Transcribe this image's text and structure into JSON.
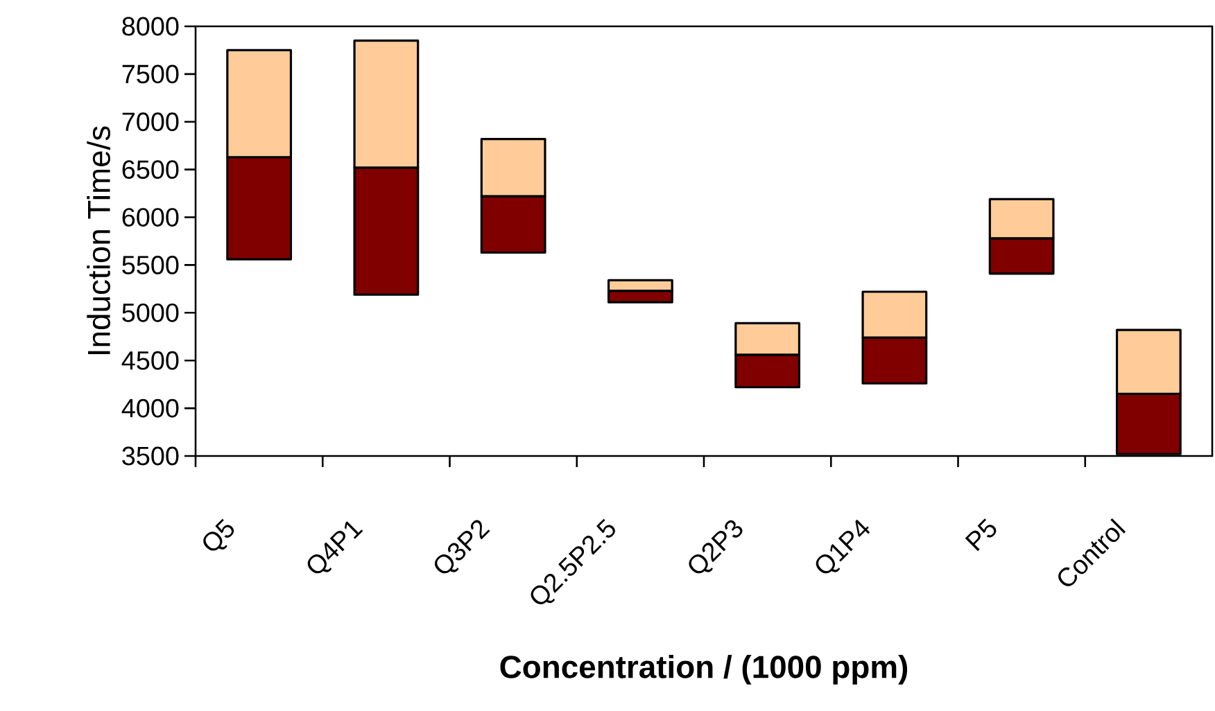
{
  "chart_data": {
    "type": "bar",
    "xlabel": "Concentration / (1000 ppm)",
    "ylabel": "Induction Time/s",
    "categories": [
      "Q5",
      "Q4P1",
      "Q3P2",
      "Q2.5P2.5",
      "Q2P3",
      "Q1P4",
      "P5",
      "Control"
    ],
    "series": [
      {
        "color": "#800000",
        "base": [
          5560,
          5190,
          5630,
          5110,
          4220,
          4260,
          5410,
          3520
        ],
        "values": [
          1070,
          1330,
          590,
          120,
          340,
          480,
          370,
          630
        ]
      },
      {
        "color": "#ffcc99",
        "base": [
          6630,
          6520,
          6220,
          5230,
          4560,
          4740,
          5780,
          4150
        ],
        "values": [
          1120,
          1330,
          600,
          110,
          330,
          480,
          410,
          670
        ]
      }
    ],
    "ylim": [
      3500,
      8000
    ],
    "yticks": [
      3500,
      4000,
      4500,
      5000,
      5500,
      6000,
      6500,
      7000,
      7500,
      8000
    ],
    "grid": false
  }
}
